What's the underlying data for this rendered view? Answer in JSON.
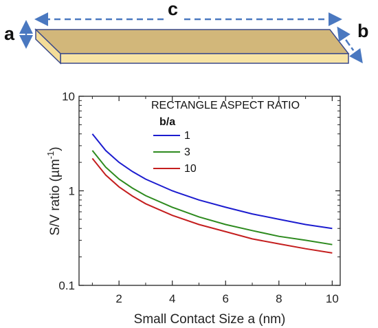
{
  "diagram": {
    "labels": {
      "a": "a",
      "b": "b",
      "c": "c"
    },
    "colors": {
      "slab_top": "#d2b77a",
      "slab_front": "#f7e3a4",
      "slab_edge": "#3b4a8a",
      "arrow": "#4a78c0"
    }
  },
  "chart_data": {
    "type": "line",
    "title": "",
    "xlabel": "Small Contact Size a (nm)",
    "ylabel": "S/V ratio  (µm",
    "ylabel_sup": "-1",
    "ylabel_close": ")",
    "xlim": [
      0.5,
      10.3
    ],
    "ylim": [
      0.1,
      10
    ],
    "yscale": "log",
    "xticks": [
      2,
      4,
      6,
      8,
      10
    ],
    "yticks": [
      {
        "value": 0.1,
        "label": "0.1"
      },
      {
        "value": 1,
        "label": "1"
      },
      {
        "value": 10,
        "label": "10"
      }
    ],
    "legend": {
      "title": "RECTANGLE ASPECT RATIO",
      "subtitle": "b/a",
      "position": "top-right"
    },
    "series": [
      {
        "name": "1",
        "color": "#1c1ccf",
        "x": [
          1,
          1.5,
          2,
          2.5,
          3,
          4,
          5,
          6,
          7,
          8,
          9,
          10
        ],
        "y": [
          4,
          2.67,
          2,
          1.6,
          1.33,
          1,
          0.8,
          0.67,
          0.57,
          0.5,
          0.44,
          0.4
        ]
      },
      {
        "name": "3",
        "color": "#2d8a1e",
        "x": [
          1,
          1.5,
          2,
          2.5,
          3,
          4,
          5,
          6,
          7,
          8,
          9,
          10
        ],
        "y": [
          2.67,
          1.78,
          1.33,
          1.07,
          0.89,
          0.67,
          0.53,
          0.44,
          0.38,
          0.33,
          0.3,
          0.27
        ]
      },
      {
        "name": "10",
        "color": "#c41e1e",
        "x": [
          1,
          1.5,
          2,
          2.5,
          3,
          4,
          5,
          6,
          7,
          8,
          9,
          10
        ],
        "y": [
          2.2,
          1.47,
          1.1,
          0.88,
          0.73,
          0.55,
          0.44,
          0.37,
          0.31,
          0.275,
          0.244,
          0.22
        ]
      }
    ]
  }
}
